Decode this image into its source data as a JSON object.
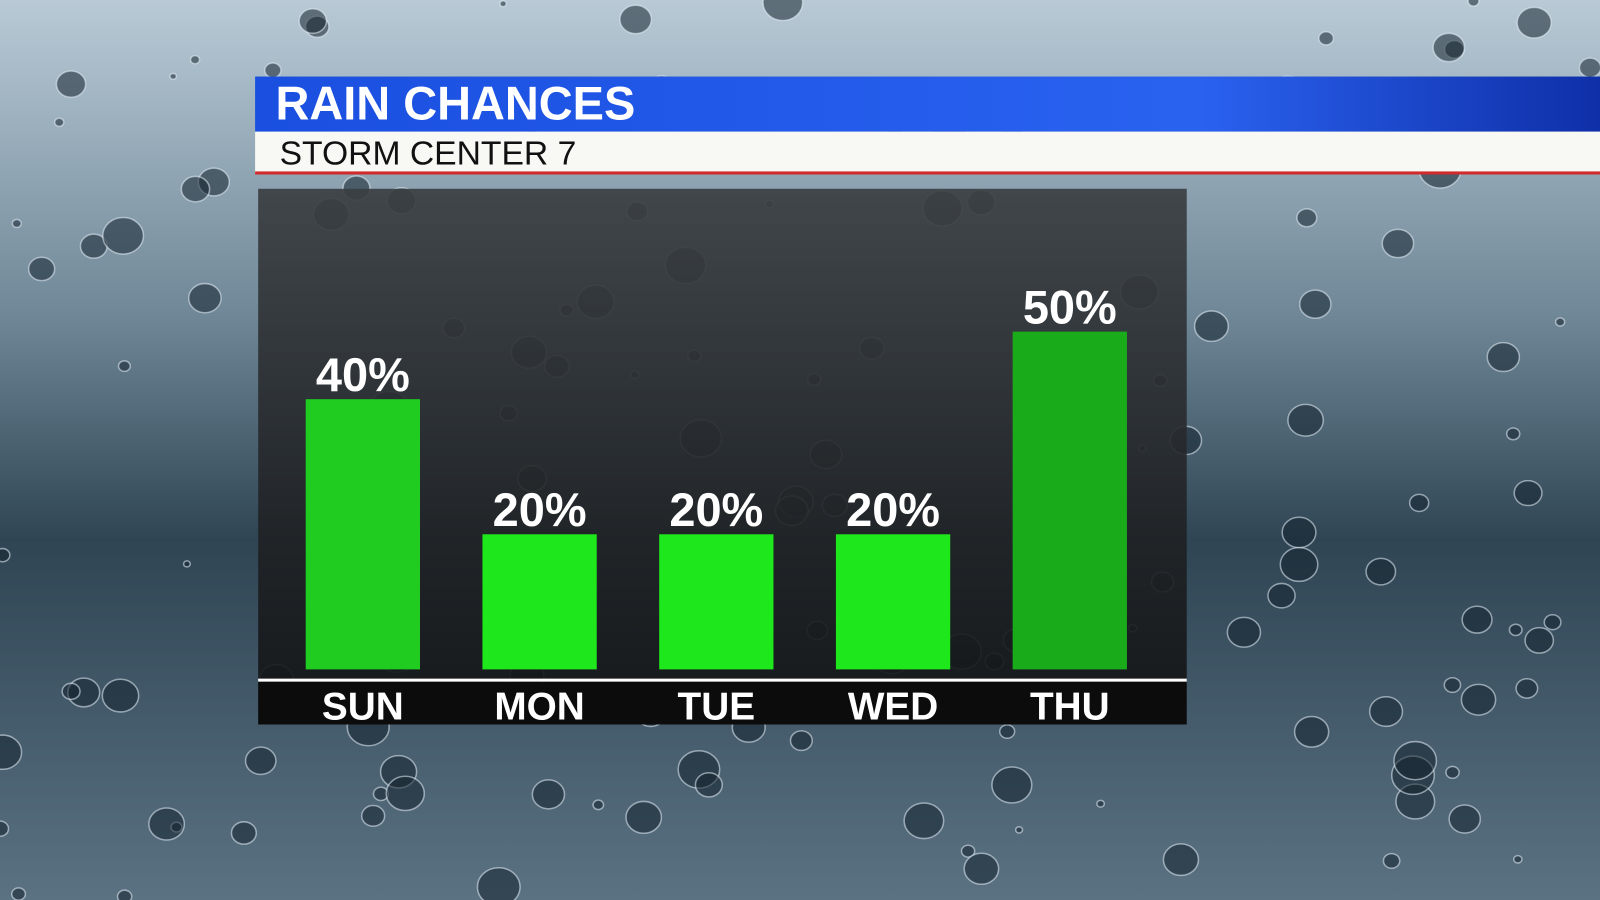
{
  "chart_data": {
    "type": "bar",
    "title": "RAIN CHANCES",
    "subtitle": "STORM CENTER 7",
    "categories": [
      "SUN",
      "MON",
      "TUE",
      "WED",
      "THU"
    ],
    "values": [
      40,
      20,
      20,
      20,
      50
    ],
    "value_labels": [
      "40%",
      "20%",
      "20%",
      "20%",
      "50%"
    ],
    "colors": [
      "#1fcc1f",
      "#1ee81c",
      "#1ee81c",
      "#1ee81c",
      "#1aab1a"
    ]
  }
}
